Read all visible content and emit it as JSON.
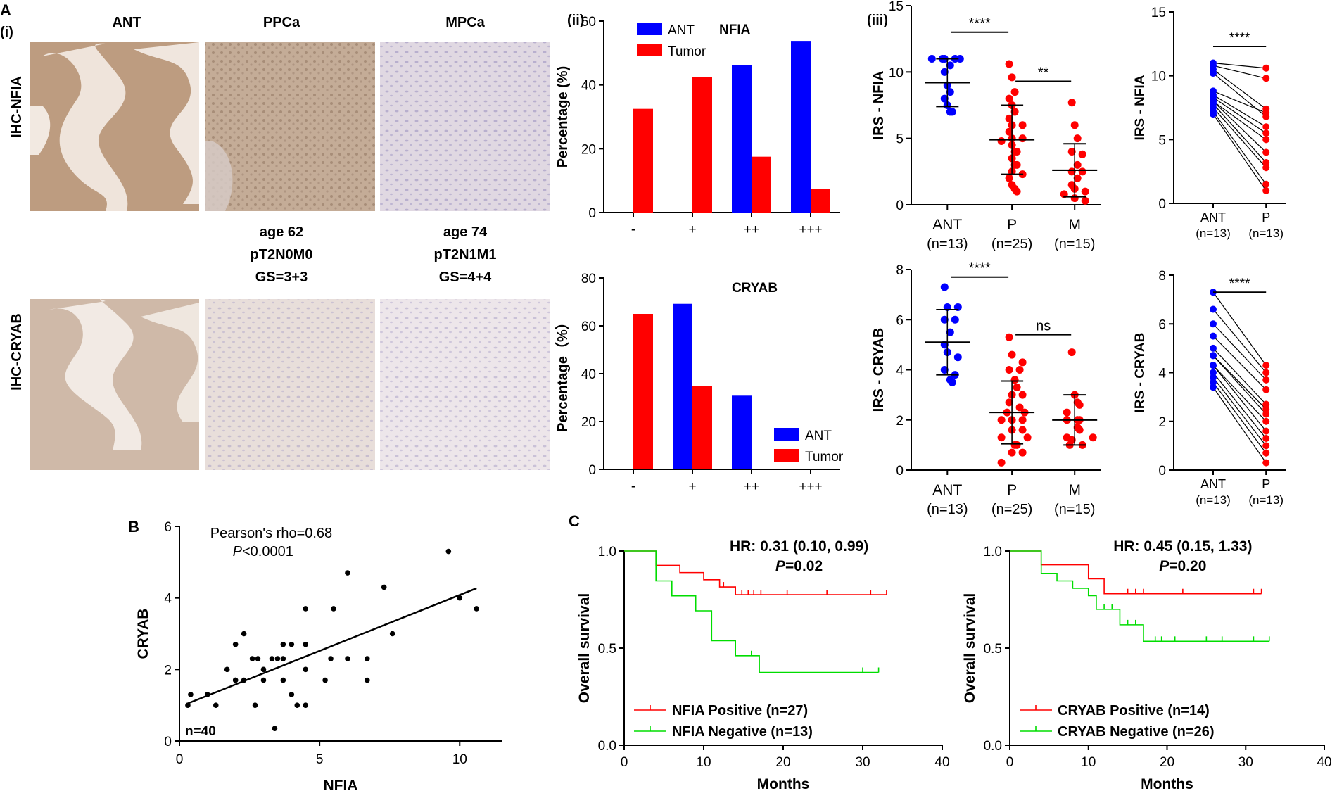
{
  "panel_labels": {
    "A": "A",
    "i": "(i)",
    "ii": "(ii)",
    "iii": "(iii)",
    "B": "B",
    "C": "C"
  },
  "ihc": {
    "col_headers": [
      "ANT",
      "PPCa",
      "MPCa"
    ],
    "row_labels": [
      "IHC-NFIA",
      "IHC-CRYAB"
    ],
    "ppca_info": [
      "age 62",
      "pT2N0M0",
      "GS=3+3"
    ],
    "mpca_info": [
      "age 74",
      "pT2N1M1",
      "GS=4+4"
    ],
    "micrograph_description_hidden": "",
    "colors": {
      "ant_nfia": "#b8977a",
      "ppca_nfia": "#c2aa94",
      "mpca_nfia": "#ddd4df",
      "ant_cryab": "#cdb7a6",
      "ppca_cryab": "#e6dbd9",
      "mpca_cryab": "#ebe4e8"
    }
  },
  "colors": {
    "ant": "#0000ff",
    "tumor": "#ff0000",
    "positive": "#ff0000",
    "negative": "#00dd00",
    "dot_black": "#000000"
  },
  "chart_data": [
    {
      "id": "nfia_bar",
      "type": "bar",
      "title": "NFIA",
      "ylabel": "Percentage (%)",
      "xlabel": "",
      "categories": [
        "-",
        "+",
        "++",
        "+++"
      ],
      "ylim": [
        0,
        60
      ],
      "yticks": [
        0,
        20,
        40,
        60
      ],
      "legend": [
        "ANT",
        "Tumor"
      ],
      "legend_position": "top-left",
      "series": [
        {
          "name": "ANT",
          "values": [
            0,
            0,
            46.2,
            53.8
          ]
        },
        {
          "name": "Tumor",
          "values": [
            32.5,
            42.5,
            17.5,
            7.5
          ]
        }
      ]
    },
    {
      "id": "cryab_bar",
      "type": "bar",
      "title": "CRYAB",
      "ylabel": "Percentage（%）",
      "xlabel": "",
      "categories": [
        "-",
        "+",
        "++",
        "+++"
      ],
      "ylim": [
        0,
        80
      ],
      "yticks": [
        0,
        20,
        40,
        60,
        80
      ],
      "legend": [
        "ANT",
        "Tumor"
      ],
      "legend_position": "bottom-right",
      "series": [
        {
          "name": "ANT",
          "values": [
            0,
            69.2,
            30.8,
            0
          ]
        },
        {
          "name": "Tumor",
          "values": [
            65,
            35,
            0,
            0
          ]
        }
      ]
    },
    {
      "id": "nfia_irs",
      "type": "scatter",
      "ylabel": "IRS - NFIA",
      "ylim": [
        0,
        15
      ],
      "yticks": [
        0,
        5,
        10,
        15
      ],
      "groups": [
        {
          "name": "ANT",
          "n": "(n=13)",
          "color": "#0000ff",
          "mean": 9.2,
          "sd": 1.8,
          "values": [
            11,
            11,
            11,
            11,
            11,
            10.5,
            10,
            9,
            8.5,
            8,
            7.5,
            7,
            7
          ]
        },
        {
          "name": "P",
          "n": "(n=25)",
          "color": "#ff0000",
          "mean": 4.9,
          "sd": 2.6,
          "values": [
            10.6,
            9.6,
            8.5,
            8,
            7.5,
            7,
            6.5,
            6,
            6,
            5.5,
            5,
            5,
            4.8,
            4.5,
            4,
            4,
            3.5,
            3,
            3,
            2.5,
            2.3,
            2,
            1.5,
            1.2,
            1
          ]
        },
        {
          "name": "M",
          "n": "(n=15)",
          "color": "#ff0000",
          "mean": 2.6,
          "sd": 2.0,
          "values": [
            7.7,
            6,
            5,
            4,
            3.8,
            3,
            2.5,
            2.5,
            2,
            1.5,
            1.2,
            1,
            0.8,
            0.5,
            0.3
          ]
        }
      ],
      "significance": [
        {
          "from": 0,
          "to": 1,
          "label": "****",
          "y": 13
        },
        {
          "from": 1,
          "to": 2,
          "label": "**",
          "y": 9.3
        }
      ]
    },
    {
      "id": "nfia_paired",
      "type": "line",
      "ylabel": "IRS - NFIA",
      "ylim": [
        0,
        15
      ],
      "yticks": [
        0,
        5,
        10,
        15
      ],
      "xlabels": [
        "ANT",
        "P"
      ],
      "nlabels": [
        "(n=13)",
        "(n=13)"
      ],
      "pairs": [
        [
          11,
          10.6
        ],
        [
          10.8,
          9.8
        ],
        [
          10.5,
          7.4
        ],
        [
          10.2,
          6.8
        ],
        [
          8.8,
          7.1
        ],
        [
          8.5,
          6
        ],
        [
          8.3,
          5.5
        ],
        [
          8,
          5
        ],
        [
          8,
          4
        ],
        [
          7.8,
          3.2
        ],
        [
          7.5,
          2.8
        ],
        [
          7.2,
          1.5
        ],
        [
          7,
          1
        ]
      ],
      "significance": [
        {
          "label": "****",
          "y": 12.3
        }
      ]
    },
    {
      "id": "cryab_irs",
      "type": "scatter",
      "ylabel": "IRS - CRYAB",
      "ylim": [
        0,
        8
      ],
      "yticks": [
        0,
        2,
        4,
        6,
        8
      ],
      "groups": [
        {
          "name": "ANT",
          "n": "(n=13)",
          "color": "#0000ff",
          "mean": 5.1,
          "sd": 1.3,
          "values": [
            7.3,
            6.5,
            6.5,
            6,
            6,
            5.5,
            5,
            4.7,
            4.5,
            4,
            3.8,
            3.6,
            3.5
          ]
        },
        {
          "name": "P",
          "n": "(n=25)",
          "color": "#ff0000",
          "mean": 2.3,
          "sd": 1.25,
          "values": [
            5.3,
            4.6,
            4.3,
            4,
            4,
            3.6,
            3.3,
            3,
            3,
            2.7,
            2.5,
            2.3,
            2.3,
            2,
            2,
            2,
            1.6,
            1.6,
            1.3,
            1.3,
            1,
            1,
            0.7,
            0.7,
            0.3
          ]
        },
        {
          "name": "M",
          "n": "(n=15)",
          "color": "#ff0000",
          "mean": 2.0,
          "sd": 1.0,
          "values": [
            4.7,
            3,
            2.7,
            2.6,
            2.3,
            2,
            2,
            2,
            1.7,
            1.6,
            1.3,
            1.3,
            1.2,
            1,
            1
          ]
        }
      ],
      "significance": [
        {
          "from": 0,
          "to": 1,
          "label": "****",
          "y": 7.7
        },
        {
          "from": 1,
          "to": 2,
          "label": "ns",
          "y": 5.4
        }
      ]
    },
    {
      "id": "cryab_paired",
      "type": "line",
      "ylabel": "IRS - CRYAB",
      "ylim": [
        0,
        8
      ],
      "yticks": [
        0,
        2,
        4,
        6,
        8
      ],
      "xlabels": [
        "ANT",
        "P"
      ],
      "nlabels": [
        "(n=13)",
        "(n=13)"
      ],
      "pairs": [
        [
          7.3,
          4.3
        ],
        [
          6.6,
          4
        ],
        [
          6,
          3.7
        ],
        [
          5.5,
          3.3
        ],
        [
          5,
          2.7
        ],
        [
          4.7,
          2.5
        ],
        [
          4.7,
          2.3
        ],
        [
          4.3,
          2
        ],
        [
          4.3,
          1.6
        ],
        [
          4,
          1.3
        ],
        [
          3.8,
          1
        ],
        [
          3.6,
          0.7
        ],
        [
          3.4,
          0.3
        ]
      ],
      "significance": [
        {
          "label": "****",
          "y": 7.3
        }
      ]
    },
    {
      "id": "correlation",
      "type": "scatter",
      "xlabel": "NFIA",
      "ylabel": "CRYAB",
      "xlim": [
        0,
        11.5
      ],
      "ylim": [
        0,
        6
      ],
      "xticks": [
        0,
        5,
        10
      ],
      "yticks": [
        0,
        2,
        4,
        6
      ],
      "annotation": "Pearson's rho=0.68",
      "pvalue_label": "<0.0001",
      "n_label": "n=40",
      "regression": {
        "x": [
          0.3,
          10.6
        ],
        "y": [
          1.05,
          4.27
        ]
      },
      "points": [
        [
          0.3,
          1.0
        ],
        [
          0.4,
          1.3
        ],
        [
          1.0,
          1.3
        ],
        [
          1.3,
          1.0
        ],
        [
          1.7,
          2.0
        ],
        [
          2.0,
          1.7
        ],
        [
          2.0,
          2.7
        ],
        [
          2.3,
          3.0
        ],
        [
          2.3,
          1.7
        ],
        [
          2.6,
          2.3
        ],
        [
          2.7,
          1.0
        ],
        [
          3.0,
          2.0
        ],
        [
          3.0,
          1.7
        ],
        [
          3.3,
          2.3
        ],
        [
          3.4,
          0.35
        ],
        [
          3.5,
          2.3
        ],
        [
          3.7,
          2.7
        ],
        [
          3.7,
          2.3
        ],
        [
          3.7,
          1.7
        ],
        [
          4.0,
          2.7
        ],
        [
          4.0,
          1.3
        ],
        [
          4.2,
          1.0
        ],
        [
          4.5,
          1.0
        ],
        [
          4.5,
          2.0
        ],
        [
          4.5,
          3.7
        ],
        [
          4.5,
          2.7
        ],
        [
          5.2,
          1.7
        ],
        [
          5.4,
          2.3
        ],
        [
          5.5,
          3.7
        ],
        [
          6.0,
          4.7
        ],
        [
          6.0,
          2.3
        ],
        [
          6.7,
          2.3
        ],
        [
          6.7,
          1.7
        ],
        [
          7.3,
          4.3
        ],
        [
          7.6,
          3.0
        ],
        [
          9.6,
          5.3
        ],
        [
          10.0,
          4.0
        ],
        [
          10.6,
          3.7
        ],
        [
          2.0,
          1.7
        ],
        [
          2.8,
          2.3
        ]
      ]
    },
    {
      "id": "km_nfia",
      "type": "line",
      "xlabel": "Months",
      "ylabel": "Overall survival",
      "xlim": [
        0,
        40
      ],
      "ylim": [
        0,
        1
      ],
      "xticks": [
        0,
        10,
        20,
        30,
        40
      ],
      "yticks": [
        0.0,
        0.5,
        1.0
      ],
      "hr_text": "HR: 0.31 (0.10, 0.99)",
      "p_text": "=0.02",
      "series": [
        {
          "name": "NFIA Positive (n=27)",
          "color": "#ff0000",
          "steps": [
            [
              0,
              1
            ],
            [
              4,
              1
            ],
            [
              4,
              0.926
            ],
            [
              7,
              0.926
            ],
            [
              7,
              0.889
            ],
            [
              10,
              0.889
            ],
            [
              10,
              0.852
            ],
            [
              12,
              0.852
            ],
            [
              12,
              0.815
            ],
            [
              14,
              0.815
            ],
            [
              14,
              0.775
            ],
            [
              33,
              0.775
            ]
          ],
          "censor": [
            [
              12.5,
              0.815
            ],
            [
              14.8,
              0.775
            ],
            [
              15.6,
              0.775
            ],
            [
              16.3,
              0.775
            ],
            [
              17.2,
              0.775
            ],
            [
              20.5,
              0.775
            ],
            [
              25.5,
              0.775
            ],
            [
              31,
              0.775
            ],
            [
              33,
              0.775
            ]
          ]
        },
        {
          "name": "NFIA Negative (n=13)",
          "color": "#00dd00",
          "steps": [
            [
              0,
              1
            ],
            [
              4,
              1
            ],
            [
              4,
              0.846
            ],
            [
              6,
              0.846
            ],
            [
              6,
              0.769
            ],
            [
              9,
              0.769
            ],
            [
              9,
              0.692
            ],
            [
              11,
              0.692
            ],
            [
              11,
              0.538
            ],
            [
              14,
              0.538
            ],
            [
              14,
              0.461
            ],
            [
              17,
              0.461
            ],
            [
              17,
              0.375
            ],
            [
              32,
              0.375
            ]
          ],
          "censor": [
            [
              16,
              0.461
            ],
            [
              30,
              0.375
            ],
            [
              32,
              0.375
            ]
          ]
        }
      ]
    },
    {
      "id": "km_cryab",
      "type": "line",
      "xlabel": "Months",
      "ylabel": "Overall survival",
      "xlim": [
        0,
        40
      ],
      "ylim": [
        0,
        1
      ],
      "xticks": [
        0,
        10,
        20,
        30,
        40
      ],
      "yticks": [
        0.0,
        0.5,
        1.0
      ],
      "hr_text": "HR: 0.45 (0.15, 1.33)",
      "p_text": "=0.20",
      "series": [
        {
          "name": "CRYAB Positive (n=14)",
          "color": "#ff0000",
          "steps": [
            [
              0,
              1
            ],
            [
              4,
              1
            ],
            [
              4,
              0.929
            ],
            [
              10,
              0.929
            ],
            [
              10,
              0.857
            ],
            [
              12,
              0.857
            ],
            [
              12,
              0.78
            ],
            [
              32,
              0.78
            ]
          ],
          "censor": [
            [
              15,
              0.78
            ],
            [
              16,
              0.78
            ],
            [
              17,
              0.78
            ],
            [
              22,
              0.78
            ],
            [
              31,
              0.78
            ],
            [
              32,
              0.78
            ]
          ]
        },
        {
          "name": "CRYAB Negative (n=26)",
          "color": "#00dd00",
          "steps": [
            [
              0,
              1
            ],
            [
              4,
              1
            ],
            [
              4,
              0.885
            ],
            [
              6,
              0.885
            ],
            [
              6,
              0.846
            ],
            [
              8,
              0.846
            ],
            [
              8,
              0.808
            ],
            [
              10,
              0.808
            ],
            [
              10,
              0.77
            ],
            [
              11,
              0.77
            ],
            [
              11,
              0.7
            ],
            [
              14,
              0.7
            ],
            [
              14,
              0.62
            ],
            [
              17,
              0.62
            ],
            [
              17,
              0.535
            ],
            [
              33,
              0.535
            ]
          ],
          "censor": [
            [
              12,
              0.7
            ],
            [
              13,
              0.7
            ],
            [
              15,
              0.62
            ],
            [
              16,
              0.62
            ],
            [
              18.5,
              0.535
            ],
            [
              19.3,
              0.535
            ],
            [
              21,
              0.535
            ],
            [
              25,
              0.535
            ],
            [
              27,
              0.535
            ],
            [
              31,
              0.535
            ],
            [
              33,
              0.535
            ]
          ]
        }
      ]
    }
  ]
}
